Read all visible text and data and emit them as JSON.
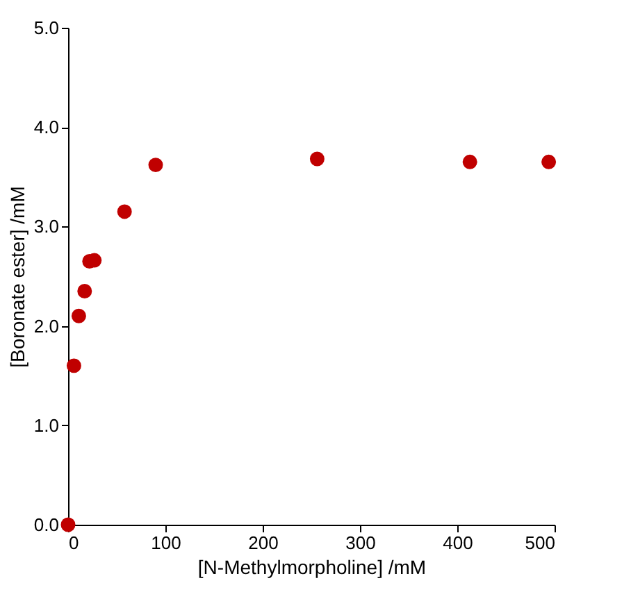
{
  "chart_data": {
    "type": "scatter",
    "xlabel": "[N-Methylmorpholine]  /mM",
    "ylabel": "[Boronate  ester] /mM",
    "series": [
      {
        "color": "#c00000",
        "x": [
          0,
          6,
          11,
          17,
          22,
          27,
          58,
          90,
          256,
          413,
          494
        ],
        "values": [
          0,
          1.6,
          2.1,
          2.35,
          2.65,
          2.66,
          3.15,
          3.62,
          3.68,
          3.65,
          3.65
        ]
      }
    ],
    "xlim": [
      0,
      500
    ],
    "xticks": [
      0,
      100,
      200,
      300,
      400,
      500
    ],
    "ylim": [
      0,
      5
    ],
    "yticks": [
      {
        "value": 0,
        "label": "0.0"
      },
      {
        "value": 1,
        "label": "1.0"
      },
      {
        "value": 2,
        "label": "2.0"
      },
      {
        "value": 3,
        "label": "3.0"
      },
      {
        "value": 4,
        "label": "4.0"
      },
      {
        "value": 5,
        "label": "5.0"
      }
    ],
    "grid": false
  }
}
